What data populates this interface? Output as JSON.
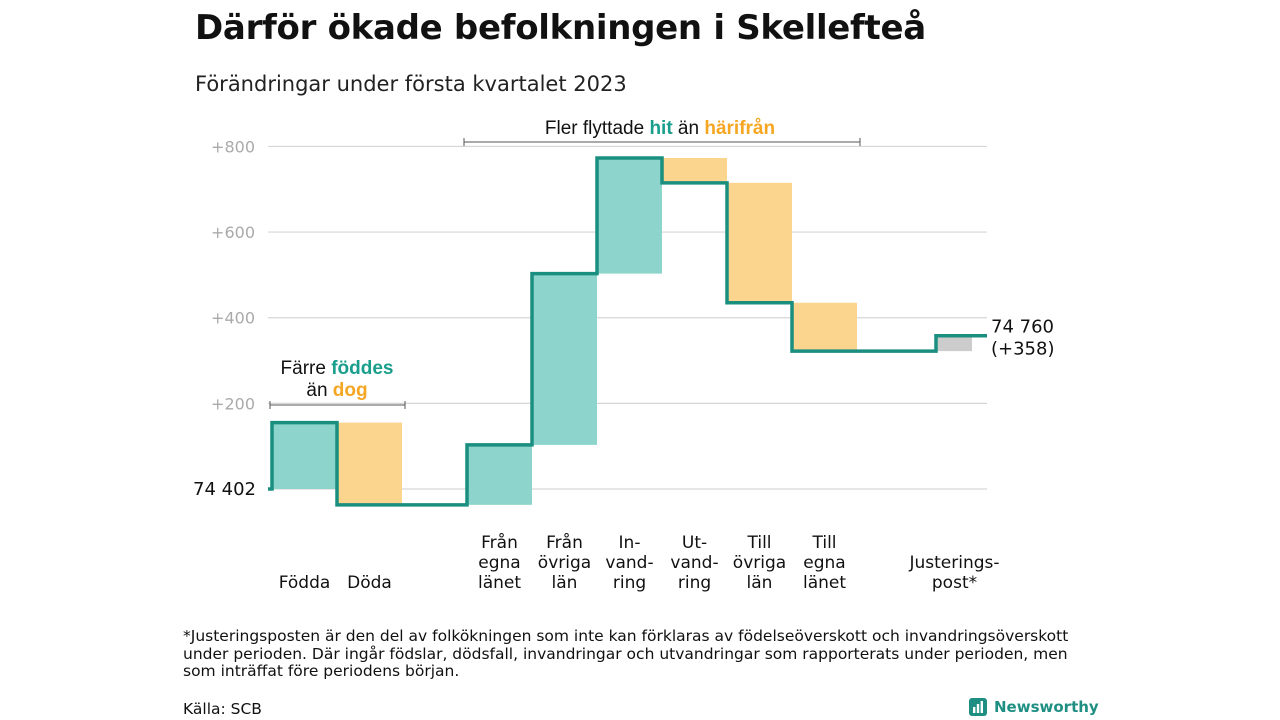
{
  "title": "Därför ökade befolkningen i Skellefteå",
  "subtitle": "Förändringar under första kvartalet 2023",
  "chart_data": {
    "type": "waterfall",
    "y_ticks": [
      "+200",
      "+400",
      "+600",
      "+800"
    ],
    "y_tick_values": [
      200,
      400,
      600,
      800
    ],
    "ylim": [
      -30,
      830
    ],
    "grid": true,
    "start_value": 0,
    "start_label": "74 402",
    "end_label": [
      "74 760",
      "(+358)"
    ],
    "colors": {
      "increase": "#8dd5cc",
      "decrease": "#fbd58e",
      "adjustment": "#cccccc",
      "line": "#1a8f80",
      "green_text": "#1a9e8c",
      "orange_text": "#f5a623"
    },
    "steps": [
      {
        "label": [
          "Födda"
        ],
        "value": 155,
        "kind": "increase"
      },
      {
        "label": [
          "Döda"
        ],
        "value": -192,
        "kind": "decrease"
      },
      {
        "label": [],
        "value": 0,
        "kind": "gap"
      },
      {
        "label": [
          "Från",
          "egna",
          "länet"
        ],
        "value": 140,
        "kind": "increase"
      },
      {
        "label": [
          "Från",
          "övriga",
          "län"
        ],
        "value": 400,
        "kind": "increase"
      },
      {
        "label": [
          "In-",
          "vand-",
          "ring"
        ],
        "value": 270,
        "kind": "increase"
      },
      {
        "label": [
          "Ut-",
          "vand-",
          "ring"
        ],
        "value": -58,
        "kind": "decrease"
      },
      {
        "label": [
          "Till",
          "övriga",
          "län"
        ],
        "value": -280,
        "kind": "decrease"
      },
      {
        "label": [
          "Till",
          "egna",
          "länet"
        ],
        "value": -113,
        "kind": "decrease"
      },
      {
        "label": [],
        "value": 0,
        "kind": "gap"
      },
      {
        "label": [
          "Justerings-",
          "post*"
        ],
        "value": 36,
        "kind": "adjustment"
      }
    ],
    "annotations": {
      "born_died": {
        "prefix": "Färre ",
        "green": "föddes",
        "line2_prefix": "än ",
        "orange": "dog"
      },
      "migration": {
        "prefix": "Fler flyttade ",
        "green": "hit",
        "middle": " än ",
        "orange": "härifrån"
      }
    }
  },
  "footnote": "*Justeringsposten är den del av folkökningen som inte kan förklaras av födelseöverskott och invandringsöverskott under perioden. Där ingår födslar, dödsfall, invandringar och utvandringar som rapporterats under perioden, men som inträffat före periodens början.",
  "source": "Källa: SCB",
  "brand": "Newsworthy"
}
